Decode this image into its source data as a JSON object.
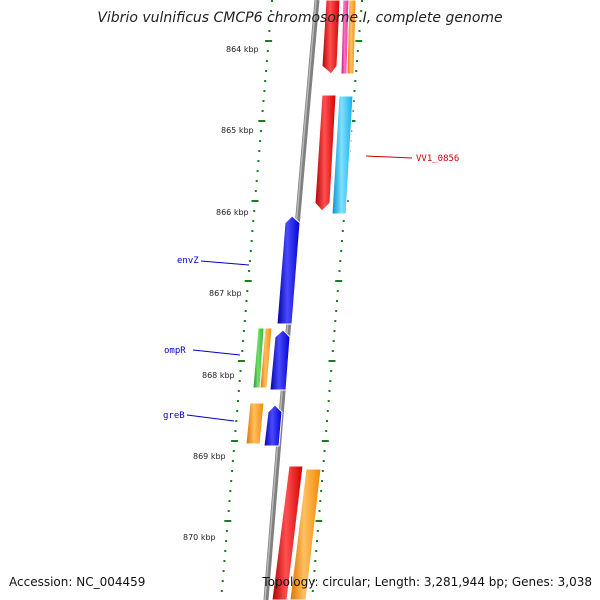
{
  "title": "Vibrio vulnificus CMCP6 chromosome I, complete genome",
  "accession": "Accession: NC_004459",
  "stats": "Topology: circular; Length: 3,281,944 bp; Genes: 3,038",
  "colors": {
    "backbone": "#808080",
    "ticks": "#1a7f1a",
    "label_left": "#0000cc",
    "label_right": "#cc0000"
  },
  "kbp_labels": [
    "864 kbp",
    "865 kbp",
    "866 kbp",
    "867 kbp",
    "868 kbp",
    "869 kbp",
    "870 kbp"
  ],
  "gene_labels": {
    "envZ": "envZ",
    "ompR": "ompR",
    "greB": "greB",
    "VV1_0856": "VV1_0856"
  }
}
